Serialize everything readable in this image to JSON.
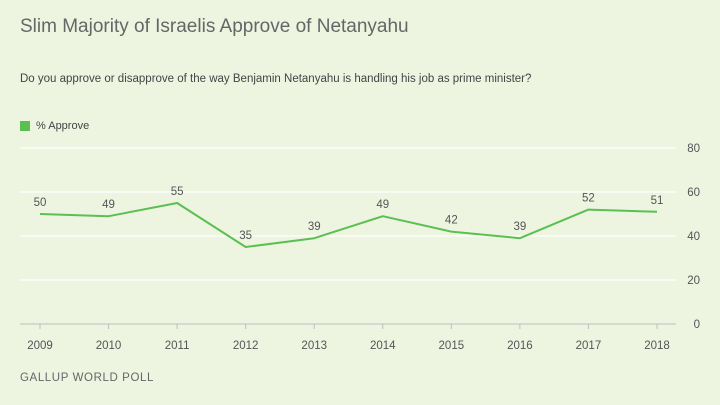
{
  "title": "Slim Majority of Israelis Approve of Netanyahu",
  "question": "Do you approve or disapprove of the way Benjamin Netanyahu is handling his job as prime minister?",
  "source": "GALLUP WORLD POLL",
  "chart_data": {
    "type": "line",
    "x": [
      "2009",
      "2010",
      "2011",
      "2012",
      "2013",
      "2014",
      "2015",
      "2016",
      "2017",
      "2018"
    ],
    "series": [
      {
        "name": "% Approve",
        "color": "#5cbf52",
        "values": [
          50,
          49,
          55,
          35,
          39,
          49,
          42,
          39,
          52,
          51
        ]
      }
    ],
    "yticks": [
      0,
      20,
      40,
      60,
      80
    ],
    "ylim": [
      0,
      80
    ],
    "grid": true,
    "legend_position": "top-left",
    "data_labels": true
  }
}
